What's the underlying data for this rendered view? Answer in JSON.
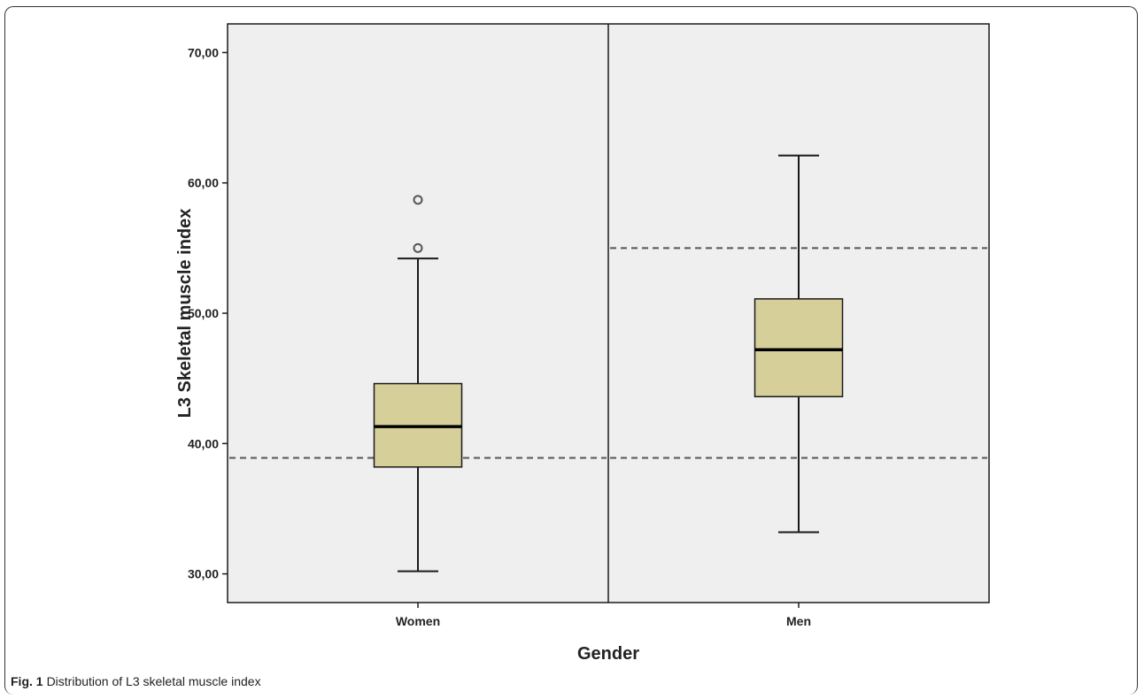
{
  "figure": {
    "caption_label": "Fig. 1",
    "caption_text": "Distribution of L3 skeletal muscle index"
  },
  "colors": {
    "plot_background": "#efefef",
    "box_fill": "#d6cf9a",
    "line": "#1a1a1a",
    "reference_line": "#555555",
    "outlier": "#555555"
  },
  "chart_data": {
    "type": "boxplot",
    "title": "",
    "xlabel": "Gender",
    "ylabel": "L3 Skeletal muscle index",
    "ylim": [
      27.8,
      72.2
    ],
    "y_ticks": [
      30,
      40,
      50,
      60,
      70
    ],
    "y_tick_labels": [
      "30,00",
      "40,00",
      "50,00",
      "60,00",
      "70,00"
    ],
    "categories": [
      "Women",
      "Men"
    ],
    "boxes": [
      {
        "category": "Women",
        "whisker_low": 30.2,
        "q1": 38.2,
        "median": 41.3,
        "q3": 44.6,
        "whisker_high": 54.2,
        "outliers": [
          55.0,
          58.7
        ]
      },
      {
        "category": "Men",
        "whisker_low": 33.2,
        "q1": 43.6,
        "median": 47.2,
        "q3": 51.1,
        "whisker_high": 62.1,
        "outliers": []
      }
    ],
    "reference_lines": [
      {
        "category": "Women",
        "y": 38.9
      },
      {
        "category": "Men",
        "y": 55.0
      },
      {
        "category": "Men",
        "y": 38.9
      }
    ],
    "grid": false,
    "legend": "none"
  }
}
